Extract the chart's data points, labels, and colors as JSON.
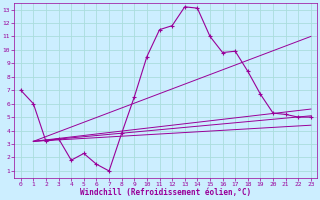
{
  "xlabel": "Windchill (Refroidissement éolien,°C)",
  "background_color": "#cceeff",
  "grid_color": "#aadddd",
  "line_color": "#990099",
  "xlim": [
    -0.5,
    23.5
  ],
  "ylim": [
    0.5,
    13.5
  ],
  "xticks": [
    0,
    1,
    2,
    3,
    4,
    5,
    6,
    7,
    8,
    9,
    10,
    11,
    12,
    13,
    14,
    15,
    16,
    17,
    18,
    19,
    20,
    21,
    22,
    23
  ],
  "yticks": [
    1,
    2,
    3,
    4,
    5,
    6,
    7,
    8,
    9,
    10,
    11,
    12,
    13
  ],
  "line1_x": [
    0,
    1,
    2,
    3,
    4,
    5,
    6,
    7,
    8,
    9,
    10,
    11,
    12,
    13,
    14,
    15,
    16,
    17,
    18,
    19,
    20,
    21,
    22,
    23
  ],
  "line1_y": [
    7.0,
    6.0,
    3.2,
    3.4,
    1.8,
    2.3,
    1.5,
    1.0,
    3.8,
    6.5,
    9.5,
    11.5,
    11.8,
    13.2,
    13.1,
    11.0,
    9.8,
    9.9,
    8.4,
    6.7,
    5.3,
    5.2,
    5.0,
    5.0
  ],
  "fan_lines": [
    {
      "x": [
        1,
        23
      ],
      "y": [
        3.2,
        5.1
      ]
    },
    {
      "x": [
        1,
        23
      ],
      "y": [
        3.2,
        4.4
      ]
    },
    {
      "x": [
        1,
        23
      ],
      "y": [
        3.2,
        5.6
      ]
    },
    {
      "x": [
        1,
        23
      ],
      "y": [
        3.2,
        11.0
      ]
    }
  ]
}
